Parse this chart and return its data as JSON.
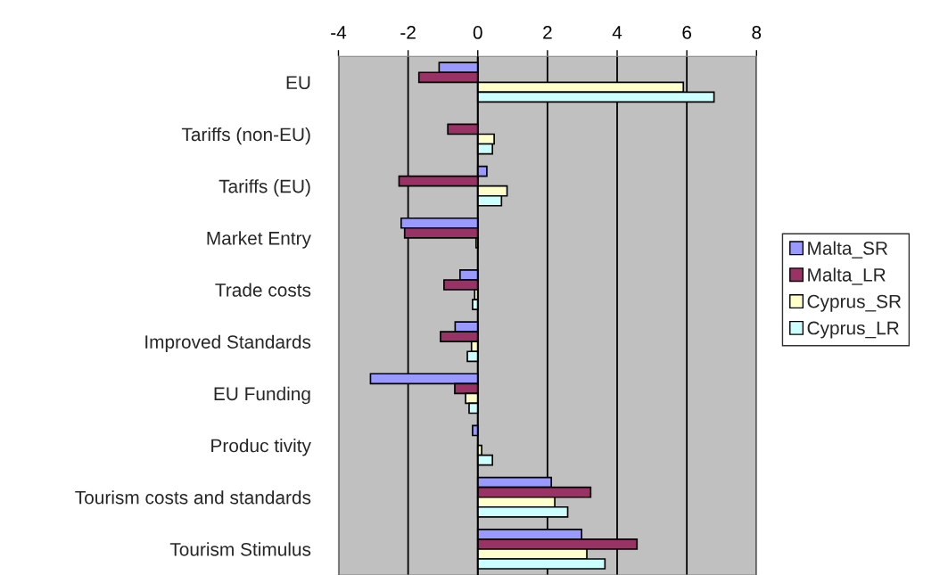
{
  "chart_data": {
    "type": "bar",
    "orientation": "horizontal",
    "categories": [
      "EU",
      "Tariffs (non-EU)",
      "Tariffs (EU)",
      "Market Entry",
      "Trade costs",
      "Improved Standards",
      "EU Funding",
      "Produc tivity",
      "Tourism costs and standards",
      "Tourism Stimulus"
    ],
    "series": [
      {
        "name": "Malta_SR",
        "color": "#9999ff",
        "values": [
          -1.11,
          null,
          0.26,
          -2.2,
          -0.51,
          -0.65,
          -3.08,
          -0.15,
          2.11,
          2.98
        ]
      },
      {
        "name": "Malta_LR",
        "color": "#993366",
        "values": [
          -1.69,
          -0.86,
          -2.26,
          -2.1,
          -0.97,
          -1.07,
          -0.66,
          null,
          3.24,
          4.57
        ]
      },
      {
        "name": "Cyprus_SR",
        "color": "#ffffcc",
        "values": [
          5.9,
          0.47,
          0.84,
          -0.05,
          -0.09,
          -0.18,
          -0.35,
          0.11,
          2.21,
          3.13
        ]
      },
      {
        "name": "Cyprus_LR",
        "color": "#ccffff",
        "values": [
          6.78,
          0.42,
          0.68,
          null,
          -0.15,
          -0.3,
          -0.25,
          0.42,
          2.58,
          3.65
        ]
      }
    ],
    "xlim": [
      -4,
      8
    ],
    "xticks": [
      -4,
      -2,
      0,
      2,
      4,
      6,
      8
    ],
    "grid": "x",
    "legend": "right"
  }
}
